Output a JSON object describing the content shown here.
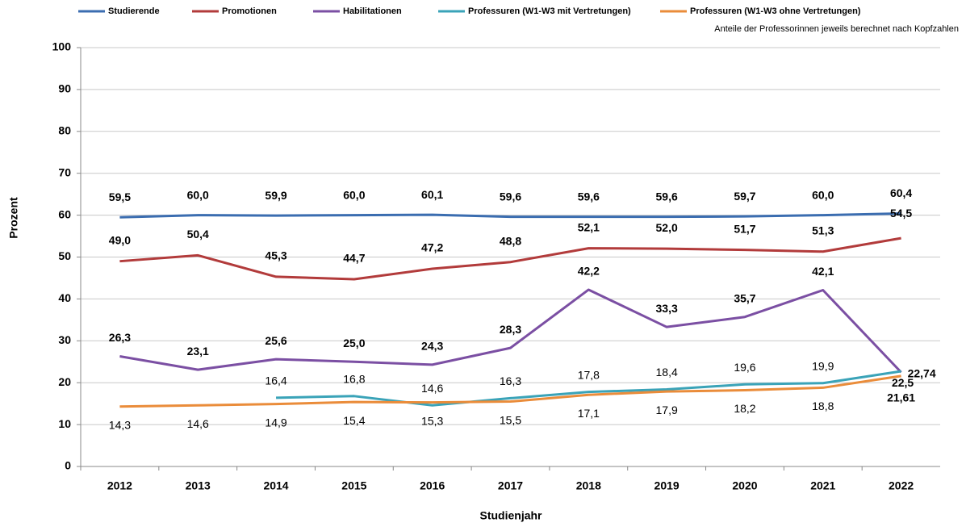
{
  "chart_data": {
    "type": "line",
    "x_label": "Studienjahr",
    "y_label": "Prozent",
    "annotation": "Anteile der Professorinnen jeweils berechnet nach Kopfzahlen",
    "categories": [
      "2012",
      "2013",
      "2014",
      "2015",
      "2016",
      "2017",
      "2018",
      "2019",
      "2020",
      "2021",
      "2022"
    ],
    "ylim": [
      0,
      100
    ],
    "yticks": [
      0,
      10,
      20,
      30,
      40,
      50,
      60,
      70,
      80,
      90,
      100
    ],
    "grid": true,
    "legend": "top",
    "series": [
      {
        "name": "Studierende",
        "color": "#3b6db0",
        "values": [
          59.5,
          60.0,
          59.9,
          60.0,
          60.1,
          59.6,
          59.6,
          59.6,
          59.7,
          60.0,
          60.4
        ],
        "value_labels": [
          "59,5",
          "60,0",
          "59,9",
          "60,0",
          "60,1",
          "59,6",
          "59,6",
          "59,6",
          "59,7",
          "60,0",
          "60,4"
        ]
      },
      {
        "name": "Promotionen",
        "color": "#b23b3b",
        "values": [
          49.0,
          50.4,
          45.3,
          44.7,
          47.2,
          48.8,
          52.1,
          52.0,
          51.7,
          51.3,
          54.5
        ],
        "value_labels": [
          "49,0",
          "50,4",
          "45,3",
          "44,7",
          "47,2",
          "48,8",
          "52,1",
          "52,0",
          "51,7",
          "51,3",
          "54,5"
        ]
      },
      {
        "name": "Habilitationen",
        "color": "#7b4fa3",
        "values": [
          26.3,
          23.1,
          25.6,
          25.0,
          24.3,
          28.3,
          42.2,
          33.3,
          35.7,
          42.1,
          22.5
        ],
        "value_labels": [
          "26,3",
          "23,1",
          "25,6",
          "25,0",
          "24,3",
          "28,3",
          "42,2",
          "33,3",
          "35,7",
          "42,1",
          "22,5"
        ]
      },
      {
        "name": "Professuren (W1-W3 mit Vertretungen)",
        "color": "#3aa3b8",
        "values": [
          null,
          null,
          16.4,
          16.8,
          14.6,
          16.3,
          17.8,
          18.4,
          19.6,
          19.9,
          22.74
        ],
        "value_labels": [
          null,
          null,
          "16,4",
          "16,8",
          "14,6",
          "16,3",
          "17,8",
          "18,4",
          "19,6",
          "19,9",
          "22,74"
        ]
      },
      {
        "name": "Professuren (W1-W3 ohne Vertretungen)",
        "color": "#ea8c3a",
        "values": [
          14.3,
          14.6,
          14.9,
          15.4,
          15.3,
          15.5,
          17.1,
          17.9,
          18.2,
          18.8,
          21.61
        ],
        "value_labels": [
          "14,3",
          "14,6",
          "14,9",
          "15,4",
          "15,3",
          "15,5",
          "17,1",
          "17,9",
          "18,2",
          "18,8",
          "21,61"
        ]
      }
    ]
  }
}
